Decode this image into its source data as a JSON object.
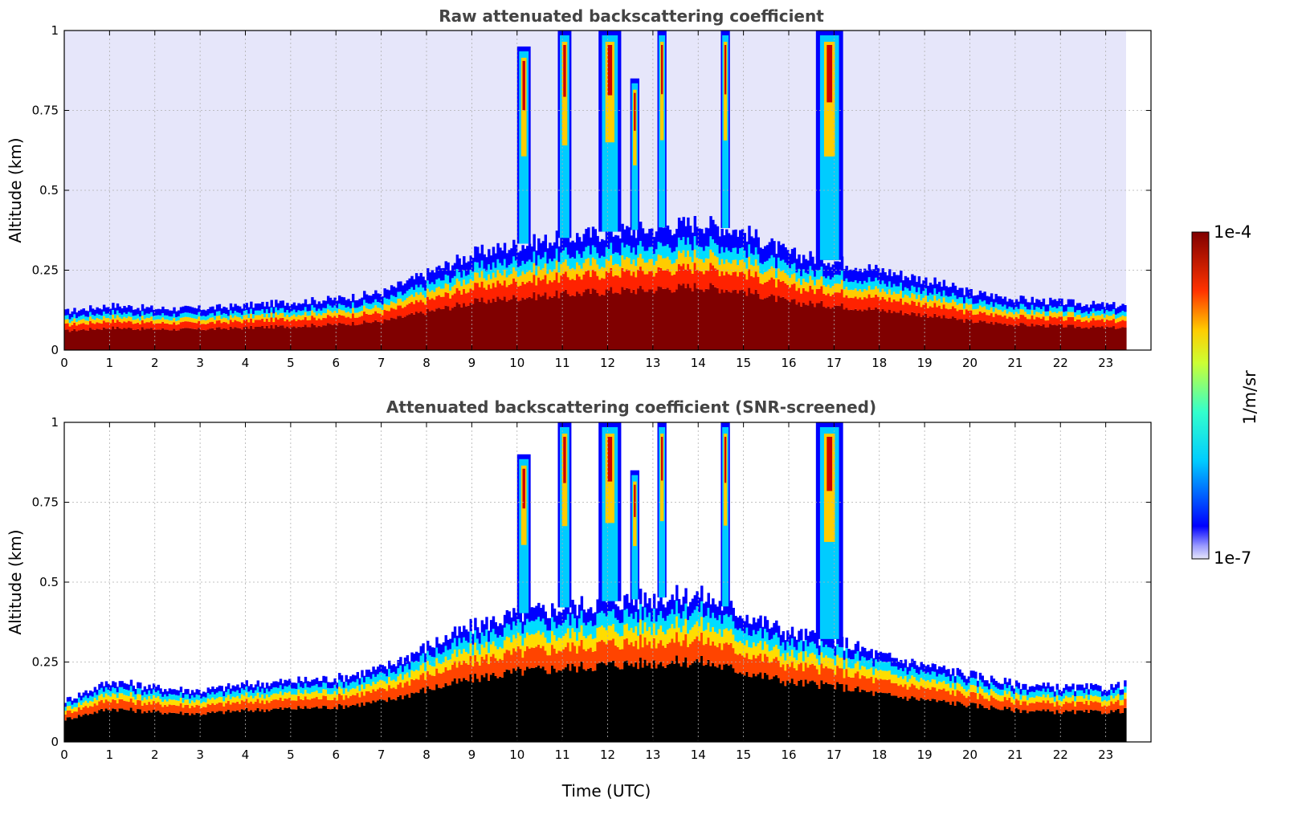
{
  "figure": {
    "xlabel": "Time (UTC)",
    "colorbar": {
      "label": "1/m/sr",
      "min_label": "1e-7",
      "max_label": "1e-4",
      "scale": "log",
      "colormap": "jet",
      "low_color": "#e6e6fa"
    }
  },
  "chart_data": [
    {
      "type": "heatmap",
      "title": "Raw attenuated backscattering coefficient",
      "xlabel": "",
      "ylabel": "Altitude (km)",
      "xlim": [
        0,
        24
      ],
      "ylim": [
        0,
        1
      ],
      "xticks": [
        "0",
        "1",
        "2",
        "3",
        "4",
        "5",
        "6",
        "7",
        "8",
        "9",
        "10",
        "11",
        "12",
        "13",
        "14",
        "15",
        "16",
        "17",
        "18",
        "19",
        "20",
        "21",
        "22",
        "23"
      ],
      "yticks": [
        "0",
        "0.25",
        "0.5",
        "0.75",
        "1"
      ],
      "grid": true,
      "data_extent_hours": 23.45,
      "screened": false,
      "layer_top_km": [
        [
          0,
          0.12
        ],
        [
          1,
          0.14
        ],
        [
          2,
          0.13
        ],
        [
          3,
          0.13
        ],
        [
          4,
          0.14
        ],
        [
          5,
          0.15
        ],
        [
          6,
          0.16
        ],
        [
          7,
          0.18
        ],
        [
          8,
          0.24
        ],
        [
          9,
          0.3
        ],
        [
          10,
          0.33
        ],
        [
          11,
          0.35
        ],
        [
          12,
          0.37
        ],
        [
          13,
          0.38
        ],
        [
          14,
          0.4
        ],
        [
          15,
          0.37
        ],
        [
          16,
          0.3
        ],
        [
          17,
          0.28
        ],
        [
          18,
          0.25
        ],
        [
          19,
          0.22
        ],
        [
          20,
          0.18
        ],
        [
          21,
          0.16
        ],
        [
          22,
          0.15
        ],
        [
          23,
          0.14
        ],
        [
          23.45,
          0.14
        ]
      ],
      "cloud_columns": [
        {
          "x0": 10.0,
          "x1": 10.3,
          "top_km": 0.95
        },
        {
          "x0": 10.9,
          "x1": 11.2,
          "top_km": 1.0
        },
        {
          "x0": 11.8,
          "x1": 12.3,
          "top_km": 1.0
        },
        {
          "x0": 12.5,
          "x1": 12.7,
          "top_km": 0.85
        },
        {
          "x0": 13.1,
          "x1": 13.3,
          "top_km": 1.0
        },
        {
          "x0": 14.5,
          "x1": 14.7,
          "top_km": 1.0
        },
        {
          "x0": 16.6,
          "x1": 17.2,
          "top_km": 1.0
        }
      ]
    },
    {
      "type": "heatmap",
      "title": "Attenuated backscattering coefficient (SNR-screened)",
      "xlabel": "Time (UTC)",
      "ylabel": "Altitude (km)",
      "xlim": [
        0,
        24
      ],
      "ylim": [
        0,
        1
      ],
      "xticks": [
        "0",
        "1",
        "2",
        "3",
        "4",
        "5",
        "6",
        "7",
        "8",
        "9",
        "10",
        "11",
        "12",
        "13",
        "14",
        "15",
        "16",
        "17",
        "18",
        "19",
        "20",
        "21",
        "22",
        "23"
      ],
      "yticks": [
        "0",
        "0.25",
        "0.5",
        "0.75",
        "1"
      ],
      "grid": true,
      "data_extent_hours": 23.45,
      "screened": true,
      "layer_top_km": [
        [
          0,
          0.13
        ],
        [
          1,
          0.19
        ],
        [
          2,
          0.17
        ],
        [
          3,
          0.16
        ],
        [
          4,
          0.18
        ],
        [
          5,
          0.19
        ],
        [
          6,
          0.2
        ],
        [
          7,
          0.23
        ],
        [
          8,
          0.3
        ],
        [
          9,
          0.36
        ],
        [
          10,
          0.4
        ],
        [
          11,
          0.42
        ],
        [
          12,
          0.44
        ],
        [
          13,
          0.45
        ],
        [
          14,
          0.46
        ],
        [
          15,
          0.4
        ],
        [
          16,
          0.34
        ],
        [
          17,
          0.32
        ],
        [
          18,
          0.27
        ],
        [
          19,
          0.24
        ],
        [
          20,
          0.21
        ],
        [
          21,
          0.18
        ],
        [
          22,
          0.17
        ],
        [
          23,
          0.17
        ],
        [
          23.45,
          0.18
        ]
      ],
      "cloud_columns": [
        {
          "x0": 10.0,
          "x1": 10.3,
          "top_km": 0.9
        },
        {
          "x0": 10.9,
          "x1": 11.2,
          "top_km": 1.0
        },
        {
          "x0": 11.8,
          "x1": 12.3,
          "top_km": 1.0
        },
        {
          "x0": 12.5,
          "x1": 12.7,
          "top_km": 0.85
        },
        {
          "x0": 13.1,
          "x1": 13.3,
          "top_km": 1.0
        },
        {
          "x0": 14.5,
          "x1": 14.7,
          "top_km": 1.0
        },
        {
          "x0": 16.6,
          "x1": 17.2,
          "top_km": 1.0
        }
      ]
    }
  ]
}
